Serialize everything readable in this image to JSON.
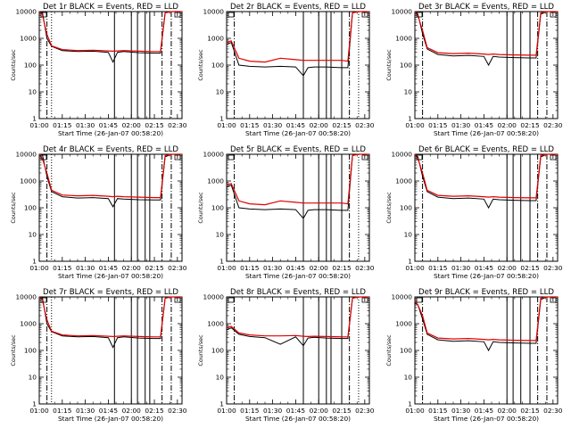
{
  "chart_data": {
    "type": "line",
    "layout": "3x3 grid",
    "xlabel": "Start Time (26-Jan-07 00:58:20)",
    "ylabel": "Counts/sec",
    "x_tick_labels": [
      "01:00",
      "01:15",
      "01:30",
      "01:45",
      "02:00",
      "02:15",
      "02:30"
    ],
    "x_ticks_min": [
      0,
      15,
      30,
      45,
      60,
      75,
      90
    ],
    "xlim_min": [
      0,
      93
    ],
    "y_tick_labels": [
      "1",
      "10",
      "100",
      "1000",
      "10000"
    ],
    "y_ticks": [
      1,
      10,
      100,
      1000,
      10000
    ],
    "ylim": [
      1,
      10000
    ],
    "yscale": "log",
    "series_names": [
      "Events",
      "LLD"
    ],
    "series_colors": [
      "#000000",
      "#e00000"
    ],
    "panels": [
      {
        "title": "Det 1r BLACK = Events, RED = LLD",
        "x": [
          0,
          2,
          5,
          8,
          15,
          25,
          35,
          45,
          48,
          51,
          55,
          65,
          75,
          79,
          82,
          86,
          93
        ],
        "events": [
          10000,
          10000,
          1000,
          500,
          350,
          320,
          330,
          300,
          130,
          300,
          320,
          290,
          280,
          280,
          9000,
          10000,
          10000
        ],
        "lld": [
          10000,
          8000,
          1400,
          520,
          380,
          350,
          360,
          340,
          330,
          340,
          350,
          330,
          320,
          320,
          9000,
          10000,
          10000
        ],
        "vlines_solid": [
          49,
          60,
          64,
          69,
          72
        ],
        "vlines_dashdot": [
          5,
          80,
          86
        ],
        "vlines_dotted": [
          8
        ]
      },
      {
        "title": "Det 2r BLACK = Events, RED = LLD",
        "x": [
          0,
          3,
          8,
          15,
          25,
          35,
          45,
          50,
          53,
          57,
          65,
          75,
          79,
          82,
          86,
          93
        ],
        "events": [
          600,
          700,
          100,
          90,
          85,
          90,
          85,
          40,
          80,
          85,
          85,
          80,
          80,
          9000,
          10000,
          10000
        ],
        "lld": [
          700,
          800,
          180,
          140,
          130,
          180,
          160,
          150,
          150,
          150,
          150,
          150,
          140,
          9000,
          10000,
          10000
        ],
        "vlines_solid": [
          50,
          60,
          65,
          68,
          75
        ],
        "vlines_dashdot": [
          5,
          80
        ],
        "vlines_dotted": [
          86
        ]
      },
      {
        "title": "Det 3r BLACK = Events, RED = LLD",
        "x": [
          0,
          2,
          5,
          8,
          15,
          25,
          35,
          45,
          48,
          51,
          55,
          65,
          75,
          79,
          82,
          86,
          93
        ],
        "events": [
          10000,
          8000,
          1500,
          400,
          250,
          220,
          230,
          210,
          100,
          210,
          200,
          190,
          185,
          185,
          8000,
          10000,
          10000
        ],
        "lld": [
          10000,
          7000,
          2000,
          450,
          290,
          270,
          280,
          260,
          250,
          260,
          250,
          240,
          235,
          235,
          9000,
          10000,
          10000
        ],
        "vlines_solid": [
          60,
          64,
          69,
          75
        ],
        "vlines_dashdot": [
          5,
          80,
          86
        ],
        "vlines_dotted": []
      },
      {
        "title": "Det 4r BLACK = Events, RED = LLD",
        "x": [
          0,
          2,
          5,
          8,
          15,
          25,
          35,
          45,
          48,
          51,
          55,
          65,
          75,
          79,
          82,
          86,
          93
        ],
        "events": [
          10000,
          10000,
          1500,
          400,
          260,
          230,
          240,
          220,
          110,
          220,
          210,
          200,
          195,
          195,
          8000,
          10000,
          10000
        ],
        "lld": [
          10000,
          7000,
          2000,
          450,
          300,
          280,
          290,
          270,
          260,
          270,
          260,
          250,
          240,
          240,
          9000,
          10000,
          10000
        ],
        "vlines_solid": [
          49,
          60,
          64,
          69,
          72
        ],
        "vlines_dashdot": [
          5,
          80,
          86
        ],
        "vlines_dotted": [
          8
        ]
      },
      {
        "title": "Det 5r BLACK = Events, RED = LLD",
        "x": [
          0,
          3,
          8,
          15,
          25,
          35,
          45,
          50,
          53,
          57,
          65,
          75,
          79,
          82,
          86,
          93
        ],
        "events": [
          600,
          700,
          100,
          90,
          85,
          90,
          85,
          40,
          80,
          85,
          85,
          80,
          80,
          9000,
          10000,
          10000
        ],
        "lld": [
          700,
          800,
          180,
          140,
          130,
          180,
          160,
          150,
          150,
          150,
          150,
          150,
          140,
          9000,
          10000,
          10000
        ],
        "vlines_solid": [
          50,
          60,
          65,
          68,
          75
        ],
        "vlines_dashdot": [
          5,
          80
        ],
        "vlines_dotted": [
          86
        ]
      },
      {
        "title": "Det 6r BLACK = Events, RED = LLD",
        "x": [
          0,
          2,
          5,
          8,
          15,
          25,
          35,
          45,
          48,
          51,
          55,
          65,
          75,
          79,
          82,
          86,
          93
        ],
        "events": [
          10000,
          8000,
          1500,
          400,
          250,
          220,
          230,
          210,
          100,
          210,
          200,
          190,
          185,
          185,
          8000,
          10000,
          10000
        ],
        "lld": [
          10000,
          7000,
          2000,
          450,
          290,
          270,
          280,
          260,
          250,
          260,
          250,
          240,
          235,
          235,
          9000,
          10000,
          10000
        ],
        "vlines_solid": [
          60,
          64,
          69,
          75
        ],
        "vlines_dashdot": [
          5,
          80,
          86
        ],
        "vlines_dotted": []
      },
      {
        "title": "Det 7r BLACK = Events, RED = LLD",
        "x": [
          0,
          2,
          5,
          8,
          15,
          25,
          35,
          45,
          48,
          51,
          55,
          65,
          75,
          79,
          82,
          86,
          93
        ],
        "events": [
          10000,
          10000,
          1000,
          500,
          350,
          320,
          330,
          300,
          130,
          300,
          320,
          290,
          280,
          280,
          9000,
          10000,
          10000
        ],
        "lld": [
          10000,
          8000,
          1400,
          520,
          380,
          350,
          360,
          340,
          330,
          340,
          350,
          330,
          320,
          320,
          9000,
          10000,
          10000
        ],
        "vlines_solid": [
          49,
          60,
          64,
          69,
          72
        ],
        "vlines_dashdot": [
          5,
          80,
          86
        ],
        "vlines_dotted": [
          8
        ]
      },
      {
        "title": "Det 8r BLACK = Events, RED = LLD",
        "x": [
          0,
          3,
          8,
          15,
          25,
          35,
          45,
          50,
          53,
          57,
          65,
          75,
          79,
          82,
          86,
          93
        ],
        "events": [
          600,
          700,
          400,
          330,
          300,
          170,
          320,
          150,
          290,
          310,
          290,
          280,
          280,
          9000,
          10000,
          10000
        ],
        "lld": [
          700,
          800,
          450,
          380,
          350,
          350,
          360,
          340,
          330,
          340,
          330,
          320,
          320,
          9000,
          10000,
          10000
        ],
        "vlines_solid": [
          50,
          60,
          65,
          68,
          75
        ],
        "vlines_dashdot": [
          5,
          80
        ],
        "vlines_dotted": [
          86
        ]
      },
      {
        "title": "Det 9r BLACK = Events, RED = LLD",
        "x": [
          0,
          2,
          5,
          8,
          15,
          25,
          35,
          45,
          48,
          51,
          55,
          65,
          75,
          79,
          82,
          86,
          93
        ],
        "events": [
          6000,
          5000,
          1500,
          400,
          250,
          220,
          230,
          210,
          100,
          210,
          200,
          190,
          185,
          185,
          8000,
          10000,
          10000
        ],
        "lld": [
          7000,
          5000,
          2000,
          450,
          290,
          270,
          280,
          260,
          250,
          260,
          250,
          240,
          235,
          235,
          9000,
          10000,
          10000
        ],
        "vlines_solid": [
          60,
          64,
          69,
          75
        ],
        "vlines_dashdot": [
          5,
          80,
          86
        ],
        "vlines_dotted": []
      }
    ]
  }
}
